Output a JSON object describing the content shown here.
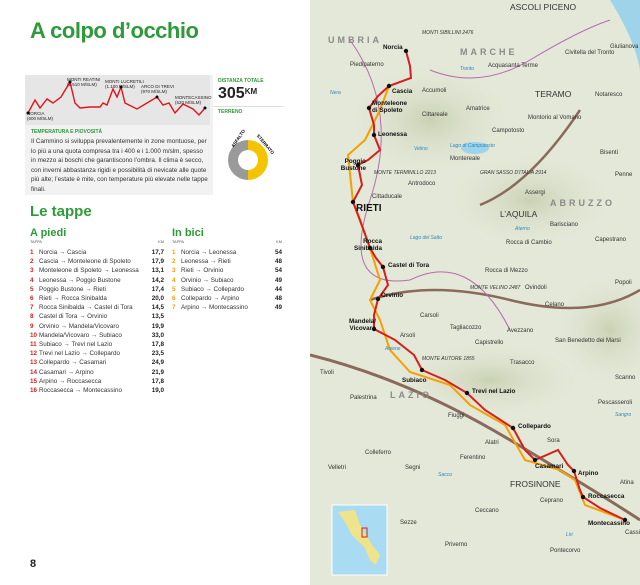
{
  "title": "A colpo d’occhio",
  "profile": {
    "peaks": [
      {
        "name": "Norcia",
        "alt": "(600 m/slm)"
      },
      {
        "name": "Monti Reatini",
        "alt": "(1.510 m/slm)"
      },
      {
        "name": "Monti Lucretili",
        "alt": "(1.100 m/slm)"
      },
      {
        "name": "Arco di Trevi",
        "alt": "(970 m/slm)"
      },
      {
        "name": "Montecassino",
        "alt": "(520 m/slm)"
      }
    ]
  },
  "distance": {
    "label": "Distanza totale",
    "value": "305",
    "unit": "KM"
  },
  "terrain": {
    "label": "Terreno",
    "asphalt_label": "Asfalto",
    "dirt_label": "Sterrato",
    "asphalt_fraction": 0.5,
    "colors": {
      "asphalt": "#9a9a9a",
      "dirt": "#f5c400"
    }
  },
  "climate": {
    "heading": "Temperatura e piovosità",
    "text": "Il Cammino si sviluppa prevalentemente in zone montuose, per lo più a una quota compresa tra i 400 e i 1.000 m/slm, spesso in mezzo ai boschi che garantiscono l’ombra. Il clima è secco, con inverni abbastanza rigidi e possibilità di nevicate alle quote più alte; l’estate è mite, con temperature più elevate nelle tappe finali."
  },
  "stages": {
    "heading": "Le tappe",
    "col_stage": "TAPPA",
    "col_km": "KM",
    "foot": {
      "heading": "A piedi",
      "rows": [
        {
          "n": "1",
          "route": "Norcia → Cascia",
          "km": "17,7"
        },
        {
          "n": "2",
          "route": "Cascia → Monteleone di Spoleto",
          "km": "17,9"
        },
        {
          "n": "3",
          "route": "Monteleone di Spoleto → Leonessa",
          "km": "13,1"
        },
        {
          "n": "4",
          "route": "Leonessa → Poggio Bustone",
          "km": "14,2"
        },
        {
          "n": "5",
          "route": "Poggio Bustone → Rieti",
          "km": "17,4"
        },
        {
          "n": "6",
          "route": "Rieti → Rocca Sinibalda",
          "km": "20,0"
        },
        {
          "n": "7",
          "route": "Rocca Sinibalda → Castel di Tora",
          "km": "14,5"
        },
        {
          "n": "8",
          "route": "Castel di Tora → Orvinio",
          "km": "13,5"
        },
        {
          "n": "9",
          "route": "Orvinio → Mandela/Vicovaro",
          "km": "19,9"
        },
        {
          "n": "10",
          "route": "Mandela/Vicovaro → Subiaco",
          "km": "33,0"
        },
        {
          "n": "11",
          "route": "Subiaco → Trevi nel Lazio",
          "km": "17,8"
        },
        {
          "n": "12",
          "route": "Trevi nel Lazio → Collepardo",
          "km": "23,5"
        },
        {
          "n": "13",
          "route": "Collepardo → Casamari",
          "km": "24,9"
        },
        {
          "n": "14",
          "route": "Casamari → Arpino",
          "km": "21,9"
        },
        {
          "n": "15",
          "route": "Arpino → Roccasecca",
          "km": "17,8"
        },
        {
          "n": "16",
          "route": "Roccasecca → Montecassino",
          "km": "19,0"
        }
      ]
    },
    "bike": {
      "heading": "In bici",
      "rows": [
        {
          "n": "1",
          "route": "Norcia → Leonessa",
          "km": "54"
        },
        {
          "n": "2",
          "route": "Leonessa → Rieti",
          "km": "48"
        },
        {
          "n": "3",
          "route": "Rieti → Orvinio",
          "km": "54"
        },
        {
          "n": "4",
          "route": "Orvinio → Subiaco",
          "km": "49"
        },
        {
          "n": "5",
          "route": "Subiaco → Collepardo",
          "km": "44"
        },
        {
          "n": "6",
          "route": "Collepardo → Arpino",
          "km": "48"
        },
        {
          "n": "7",
          "route": "Arpino → Montecassino",
          "km": "49"
        }
      ]
    }
  },
  "page_number": "8",
  "map": {
    "route_colors": {
      "foot": "#d4201c",
      "bike": "#f5a000"
    },
    "stops": [
      "Norcia",
      "Cascia",
      "Monteleone di Spoleto",
      "Leonessa",
      "Poggio Bustone",
      "RIETI",
      "Rocca Sinibalda",
      "Castel di Tora",
      "Orvinio",
      "Mandela/ Vicovaro",
      "Subiaco",
      "Trevi nel Lazio",
      "Collepardo",
      "Casamari",
      "Arpino",
      "Roccasecca",
      "Montecassino"
    ],
    "regions": [
      "UMBRIA",
      "MARCHE",
      "ABRUZZO",
      "LAZIO"
    ],
    "cities": [
      "ASCOLI PICENO",
      "TERAMO",
      "L’AQUILA",
      "FROSINONE"
    ],
    "towns": [
      "Piedipaterno",
      "Accumoli",
      "Cittareale",
      "Amatrice",
      "Acquasanta Terme",
      "Civitella del Tronto",
      "Giulianova",
      "Notaresco",
      "Montorio al Vomano",
      "Campotosto",
      "Montereale",
      "Bisenti",
      "Penne",
      "Antrodoco",
      "Cittaducale",
      "Assergi",
      "Barisciano",
      "Capestrano",
      "Rocca di Cambio",
      "Rocca di Mezzo",
      "Ovindoli",
      "Popoli",
      "Celano",
      "Carsoli",
      "Tagliacozzo",
      "Avezzano",
      "San Benedetto dei Marsi",
      "Arsoli",
      "Capistrello",
      "Trasacco",
      "Tivoli",
      "Scanno",
      "Palestrina",
      "Pescasseroli",
      "Fiuggi",
      "Alatri",
      "Sora",
      "Atina",
      "Colleferro",
      "Segni",
      "Ferentino",
      "Velletri",
      "Ceprano",
      "Ceccano",
      "Cassino",
      "Sezze",
      "Priverno",
      "Pontecorvo"
    ],
    "mountains": [
      "MONTI SIBILLINI 2476",
      "MONTE TERMINILLO 2213",
      "GRAN SASSO D’ITALIA 2914",
      "MONTE VELINO 2487",
      "MONTE AUTORE 1855"
    ],
    "waters": [
      "Lago di Campotosto",
      "Lago del Salto",
      "Nera",
      "Velino",
      "Tronto",
      "Aterno",
      "Aniene",
      "Liri",
      "Sacco",
      "Sangro"
    ]
  }
}
